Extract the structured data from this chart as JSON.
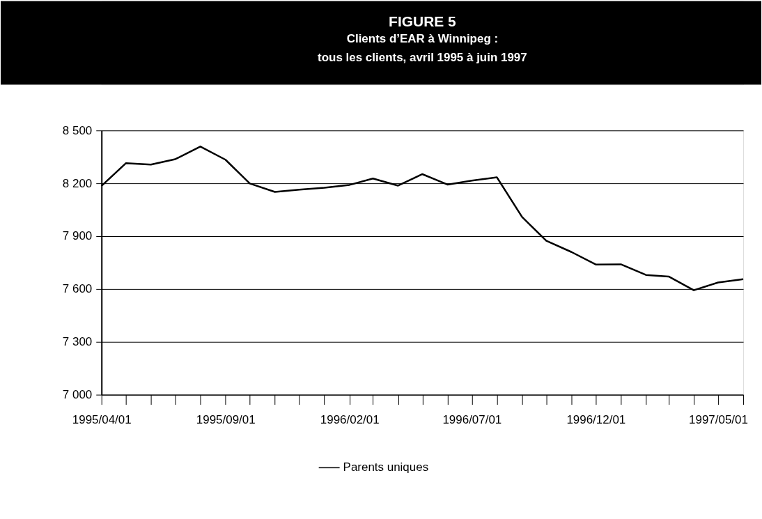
{
  "chart_data": {
    "type": "line",
    "title": "FIGURE 5",
    "subtitle": "Clients d’EAR à Winnipeg :\ntous les clients, avril 1995 à juin 1997",
    "x": [
      "1995-04",
      "1995-05",
      "1995-06",
      "1995-07",
      "1995-08",
      "1995-09",
      "1995-10",
      "1995-11",
      "1995-12",
      "1996-01",
      "1996-02",
      "1996-03",
      "1996-04",
      "1996-05",
      "1996-06",
      "1996-07",
      "1996-08",
      "1996-09",
      "1996-10",
      "1996-11",
      "1996-12",
      "1997-01",
      "1997-02",
      "1997-03",
      "1997-04",
      "1997-05",
      "1997-06"
    ],
    "series": [
      {
        "name": "Parents uniques",
        "color": "#000000",
        "values": [
          8185,
          8314,
          8306,
          8337,
          8409,
          8334,
          8199,
          8151,
          8164,
          8175,
          8191,
          8227,
          8187,
          8252,
          8193,
          8215,
          8234,
          8009,
          7874,
          7810,
          7739,
          7740,
          7680,
          7671,
          7593,
          7637,
          7656
        ]
      }
    ],
    "xlim": [
      "1995-04",
      "1997-06"
    ],
    "xticks": [
      {
        "value": "1995-04",
        "label": "1995/04/01"
      },
      {
        "value": "1995-05",
        "label": null
      },
      {
        "value": "1995-06",
        "label": null
      },
      {
        "value": "1995-07",
        "label": null
      },
      {
        "value": "1995-08",
        "label": null
      },
      {
        "value": "1995-09",
        "label": "1995/09/01"
      },
      {
        "value": "1995-10",
        "label": null
      },
      {
        "value": "1995-11",
        "label": null
      },
      {
        "value": "1995-12",
        "label": null
      },
      {
        "value": "1996-01",
        "label": null
      },
      {
        "value": "1996-02",
        "label": "1996/02/01"
      },
      {
        "value": "1996-03",
        "label": null
      },
      {
        "value": "1996-04",
        "label": null
      },
      {
        "value": "1996-05",
        "label": null
      },
      {
        "value": "1996-06",
        "label": null
      },
      {
        "value": "1996-07",
        "label": "1996/07/01"
      },
      {
        "value": "1996-08",
        "label": null
      },
      {
        "value": "1996-09",
        "label": null
      },
      {
        "value": "1996-10",
        "label": null
      },
      {
        "value": "1996-11",
        "label": null
      },
      {
        "value": "1996-12",
        "label": "1996/12/01"
      },
      {
        "value": "1997-01",
        "label": null
      },
      {
        "value": "1997-02",
        "label": null
      },
      {
        "value": "1997-03",
        "label": null
      },
      {
        "value": "1997-04",
        "label": null
      },
      {
        "value": "1997-05",
        "label": "1997/05/01"
      },
      {
        "value": "1997-06",
        "label": null
      }
    ],
    "ylim": [
      7000,
      8500
    ],
    "yticks": [
      {
        "value": 7000,
        "label": "7 000"
      },
      {
        "value": 7300,
        "label": "7 300"
      },
      {
        "value": 7600,
        "label": "7 600"
      },
      {
        "value": 7900,
        "label": "7 900"
      },
      {
        "value": 8200,
        "label": "8 200"
      },
      {
        "value": 8500,
        "label": "8 500"
      }
    ],
    "grid": "y",
    "legend": "bottom",
    "marker": "none",
    "line_style": "solid"
  }
}
